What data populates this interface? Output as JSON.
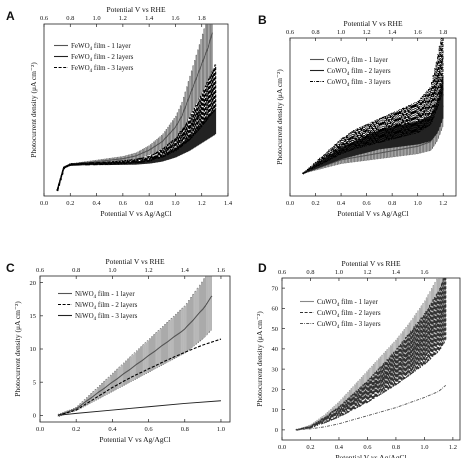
{
  "chart_data": [
    {
      "type": "line",
      "panel_label": "A",
      "title": "",
      "xlabel": "Potential V vs Ag/AgCl",
      "x2label": "Potential V vs RHE",
      "ylabel": "Photocurrent density (μA cm⁻²)",
      "xlim": [
        0.0,
        1.4
      ],
      "ylim": [
        -10,
        50
      ],
      "xticks": [
        "0.0",
        "0.2",
        "0.4",
        "0.6",
        "0.8",
        "1.0",
        "1.2",
        "1.4"
      ],
      "x2ticks": [
        "0.6",
        "0.8",
        "1.0",
        "1.2",
        "1.4",
        "1.6",
        "1.8"
      ],
      "x2_offset": 0.6,
      "yticks": [],
      "legend_position": "top-left",
      "series": [
        {
          "name_main": "FeWO",
          "name_sub": "4",
          "name_rest": " film - 1 layer",
          "style": "thin",
          "color": "#555555",
          "chopped": true,
          "x": [
            0.1,
            0.15,
            0.2,
            0.3,
            0.4,
            0.5,
            0.6,
            0.7,
            0.8,
            0.9,
            1.0,
            1.05,
            1.1,
            1.15,
            1.2,
            1.25,
            1.28
          ],
          "y": [
            -8,
            0,
            1,
            1.5,
            2,
            2.5,
            3,
            4,
            6,
            9,
            14,
            18,
            24,
            30,
            36,
            42,
            47
          ]
        },
        {
          "name_main": "FeWO",
          "name_sub": "4",
          "name_rest": " film - 2 layers",
          "style": "solid",
          "color": "#222222",
          "chopped": true,
          "x": [
            0.1,
            0.15,
            0.2,
            0.3,
            0.4,
            0.5,
            0.6,
            0.7,
            0.8,
            0.9,
            1.0,
            1.1,
            1.2,
            1.3
          ],
          "y": [
            -8,
            0,
            1,
            1.2,
            1.3,
            1.3,
            1.4,
            1.5,
            2,
            3,
            5,
            8,
            12,
            16
          ]
        },
        {
          "name_main": "FeWO",
          "name_sub": "4",
          "name_rest": " film - 3 layers",
          "style": "dashed",
          "color": "#000000",
          "chopped": true,
          "x": [
            0.1,
            0.15,
            0.2,
            0.3,
            0.4,
            0.5,
            0.6,
            0.7,
            0.8,
            0.9,
            1.0,
            1.1,
            1.2,
            1.3
          ],
          "y": [
            -8,
            0,
            1,
            1.2,
            1.3,
            1.5,
            1.8,
            2.2,
            3,
            5,
            8,
            13,
            20,
            28
          ]
        }
      ]
    },
    {
      "type": "line",
      "panel_label": "B",
      "title": "",
      "xlabel": "Potential V vs Ag/AgCl",
      "x2label": "Potential V vs RHE",
      "ylabel": "Photocurrent density (μA cm⁻²)",
      "xlim": [
        0.0,
        1.3
      ],
      "ylim": [
        -10,
        60
      ],
      "xticks": [
        "0.0",
        "0.2",
        "0.4",
        "0.6",
        "0.8",
        "1.0",
        "1.2"
      ],
      "x2ticks": [
        "0.6",
        "0.8",
        "1.0",
        "1.2",
        "1.4",
        "1.6",
        "1.8"
      ],
      "x2_offset": 0.6,
      "yticks": [],
      "legend_position": "top-left",
      "series": [
        {
          "name_main": "CoWO",
          "name_sub": "4",
          "name_rest": " film - 1 layer",
          "style": "thin",
          "color": "#555555",
          "chopped": true,
          "x": [
            0.1,
            0.2,
            0.3,
            0.4,
            0.5,
            0.6,
            0.7,
            0.8,
            0.9,
            1.0,
            1.1,
            1.15,
            1.2
          ],
          "y": [
            0,
            2,
            4,
            6,
            7,
            8,
            9,
            10,
            11,
            12,
            14,
            20,
            30
          ]
        },
        {
          "name_main": "CoWO",
          "name_sub": "4",
          "name_rest": " film - 2 layers",
          "style": "solid",
          "color": "#222222",
          "chopped": true,
          "x": [
            0.1,
            0.2,
            0.3,
            0.4,
            0.5,
            0.6,
            0.7,
            0.8,
            0.9,
            1.0,
            1.1,
            1.15,
            1.2
          ],
          "y": [
            0,
            3,
            6,
            9,
            11,
            13,
            15,
            16,
            17,
            18,
            20,
            25,
            35
          ]
        },
        {
          "name_main": "CoWO",
          "name_sub": "4",
          "name_rest": " film - 3 layers",
          "style": "dashdot",
          "color": "#000000",
          "chopped": true,
          "x": [
            0.1,
            0.2,
            0.3,
            0.4,
            0.5,
            0.6,
            0.7,
            0.8,
            0.9,
            1.0,
            1.1,
            1.15,
            1.2
          ],
          "y": [
            0,
            4,
            8,
            12,
            15,
            17,
            19,
            21,
            23,
            25,
            30,
            40,
            52
          ]
        }
      ]
    },
    {
      "type": "line",
      "panel_label": "C",
      "title": "",
      "xlabel": "Potential V vs Ag/AgCl",
      "x2label": "Potential V vs RHE",
      "ylabel": "Photocurrent density (μA cm⁻²)",
      "xlim": [
        0.0,
        1.05
      ],
      "ylim": [
        -1,
        21
      ],
      "xticks": [
        "0.0",
        "0.2",
        "0.4",
        "0.6",
        "0.8",
        "1.0"
      ],
      "x2ticks": [
        "0.6",
        "0.8",
        "1.0",
        "1.2",
        "1.4",
        "1.6"
      ],
      "x2_offset": 0.6,
      "yticks": [
        "0",
        "5",
        "10",
        "15",
        "20"
      ],
      "legend_position": "top-left",
      "series": [
        {
          "name_main": "NiWO",
          "name_sub": "4",
          "name_rest": " film - 1 layer",
          "style": "thin",
          "color": "#555555",
          "chopped": true,
          "x": [
            0.1,
            0.2,
            0.3,
            0.4,
            0.5,
            0.6,
            0.7,
            0.8,
            0.9,
            0.95
          ],
          "y": [
            0,
            1,
            3,
            5,
            7,
            9,
            11,
            13,
            16,
            18
          ]
        },
        {
          "name_main": "NiWO",
          "name_sub": "4",
          "name_rest": " film - 2 layers",
          "style": "dashed",
          "color": "#000000",
          "chopped": false,
          "x": [
            0.1,
            0.2,
            0.3,
            0.4,
            0.5,
            0.6,
            0.7,
            0.8,
            0.9,
            1.0
          ],
          "y": [
            0,
            0.8,
            2.5,
            4.2,
            5.7,
            7,
            8.3,
            9.5,
            10.6,
            11.5
          ]
        },
        {
          "name_main": "NiWO",
          "name_sub": "4",
          "name_rest": " film - 3 layers",
          "style": "solid",
          "color": "#222222",
          "chopped": false,
          "x": [
            0.1,
            0.2,
            0.4,
            0.6,
            0.8,
            1.0
          ],
          "y": [
            0,
            0.3,
            0.8,
            1.3,
            1.8,
            2.2
          ]
        }
      ]
    },
    {
      "type": "line",
      "panel_label": "D",
      "title": "",
      "xlabel": "Potential V vs Ag/AgCl",
      "x2label": "Potential V vs RHE",
      "ylabel": "Photocurrent density (μA cm⁻²)",
      "xlim": [
        0.0,
        1.25
      ],
      "ylim": [
        -5,
        75
      ],
      "xticks": [
        "0.0",
        "0.2",
        "0.4",
        "0.6",
        "0.8",
        "1.0",
        "1.2"
      ],
      "x2ticks": [
        "0.6",
        "0.8",
        "1.0",
        "1.2",
        "1.4",
        "1.6"
      ],
      "x2_offset": 0.6,
      "yticks": [
        "0",
        "10",
        "20",
        "30",
        "40",
        "50",
        "60",
        "70"
      ],
      "legend_position": "top-left",
      "series": [
        {
          "name_main": "CuWO",
          "name_sub": "4",
          "name_rest": " film - 1 layer",
          "style": "thin",
          "color": "#888888",
          "chopped": true,
          "x": [
            0.1,
            0.2,
            0.3,
            0.4,
            0.5,
            0.6,
            0.7,
            0.8,
            0.9,
            1.0,
            1.1,
            1.15
          ],
          "y": [
            0,
            2,
            6,
            11,
            17,
            23,
            29,
            35,
            42,
            50,
            60,
            68
          ]
        },
        {
          "name_main": "CuWO",
          "name_sub": "4",
          "name_rest": " film - 2 layers",
          "style": "dashed",
          "color": "#333333",
          "chopped": true,
          "x": [
            0.1,
            0.2,
            0.3,
            0.4,
            0.5,
            0.6,
            0.7,
            0.8,
            0.9,
            1.0,
            1.1,
            1.15
          ],
          "y": [
            0,
            1.5,
            5,
            9,
            14,
            19,
            25,
            31,
            38,
            45,
            54,
            62
          ]
        },
        {
          "name_main": "CuWO",
          "name_sub": "4",
          "name_rest": " film - 3 layers",
          "style": "dashdot",
          "color": "#555555",
          "chopped": false,
          "x": [
            0.1,
            0.2,
            0.3,
            0.4,
            0.5,
            0.6,
            0.7,
            0.8,
            0.9,
            1.0,
            1.1,
            1.15
          ],
          "y": [
            0,
            0.5,
            1.5,
            3,
            5,
            7,
            9,
            11,
            13.5,
            16,
            19,
            22
          ]
        }
      ]
    }
  ]
}
